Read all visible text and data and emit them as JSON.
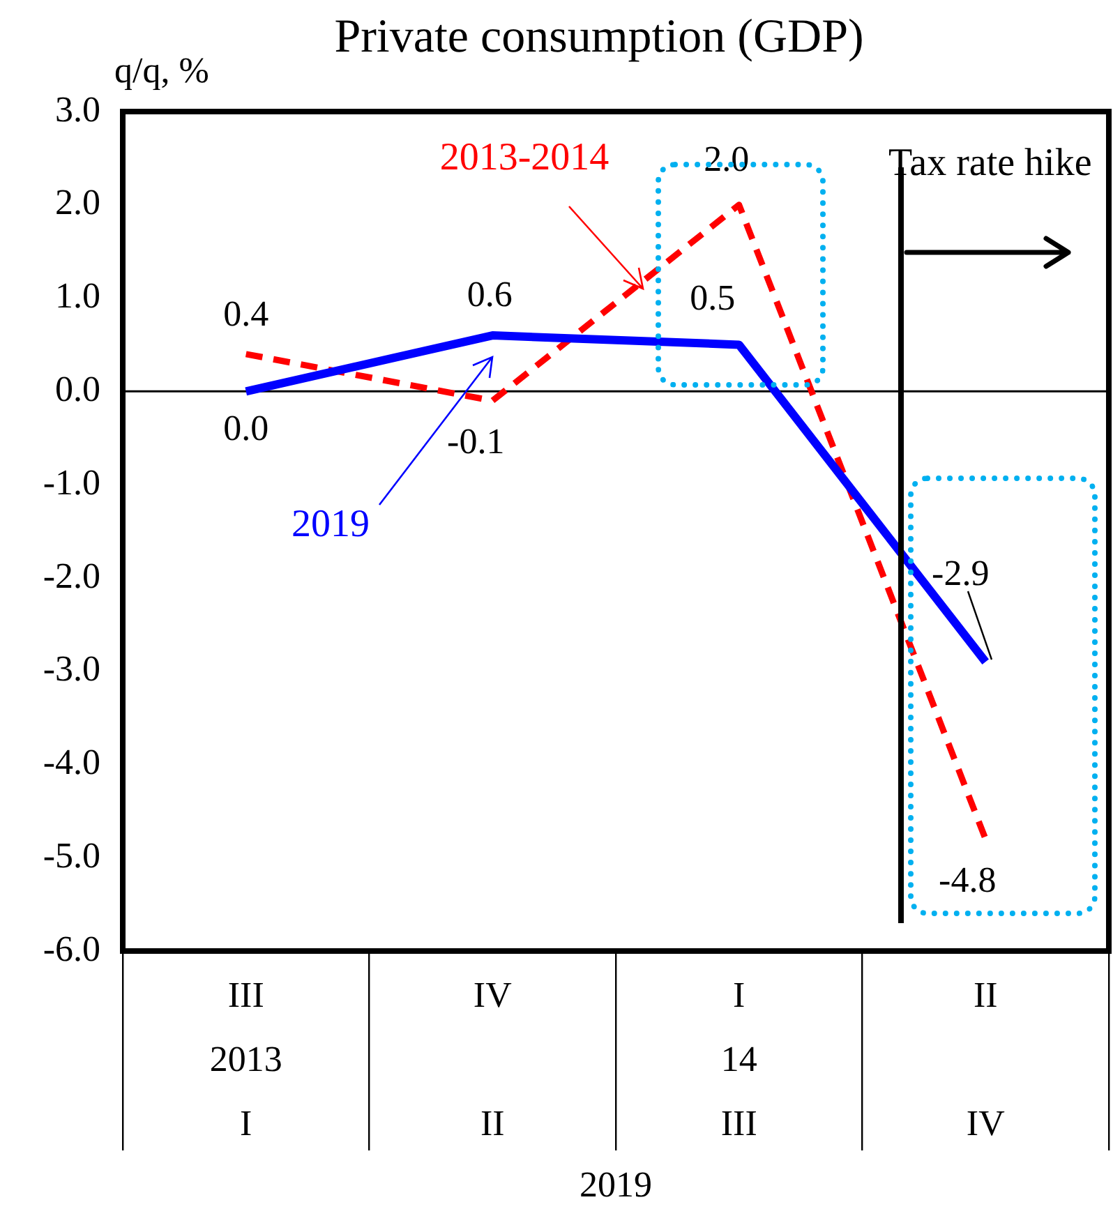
{
  "chart_data": {
    "type": "line",
    "title": "Private consumption (GDP)",
    "ylabel": "q/q, %",
    "xlabel": "2019",
    "categories": [
      "III\n2013\nI",
      "IV\n\nII",
      "I\n14\nIII",
      "II\n\nIV"
    ],
    "series": [
      {
        "name": "2013-2014",
        "color": "#ff0000",
        "line_style": "dashed",
        "values": [
          0.4,
          -0.1,
          2.0,
          -4.8
        ],
        "value_labels": [
          "0.4",
          "-0.1",
          "2.0",
          "-4.8"
        ]
      },
      {
        "name": "2019",
        "color": "#0000ff",
        "line_style": "solid",
        "values": [
          0.0,
          0.6,
          0.5,
          -2.9
        ],
        "value_labels": [
          "0.0",
          "0.6",
          "0.5",
          "-2.9"
        ]
      }
    ],
    "ylim": [
      -6,
      3
    ],
    "yticks": [
      {
        "value": 3,
        "label": "3.0"
      },
      {
        "value": 2,
        "label": "2.0"
      },
      {
        "value": 1,
        "label": "1.0"
      },
      {
        "value": 0,
        "label": "0.0"
      },
      {
        "value": -1,
        "label": "-1.0"
      },
      {
        "value": -2,
        "label": "-2.0"
      },
      {
        "value": -3,
        "label": "-3.0"
      },
      {
        "value": -4,
        "label": "-4.0"
      },
      {
        "value": -5,
        "label": "-5.0"
      },
      {
        "value": -6,
        "label": "-6.0"
      }
    ],
    "ref_lines": [
      {
        "axis": "y",
        "value": 0
      }
    ],
    "annotations": [
      "Tax rate hike"
    ],
    "grid": false,
    "legend": false,
    "marker": "none"
  }
}
